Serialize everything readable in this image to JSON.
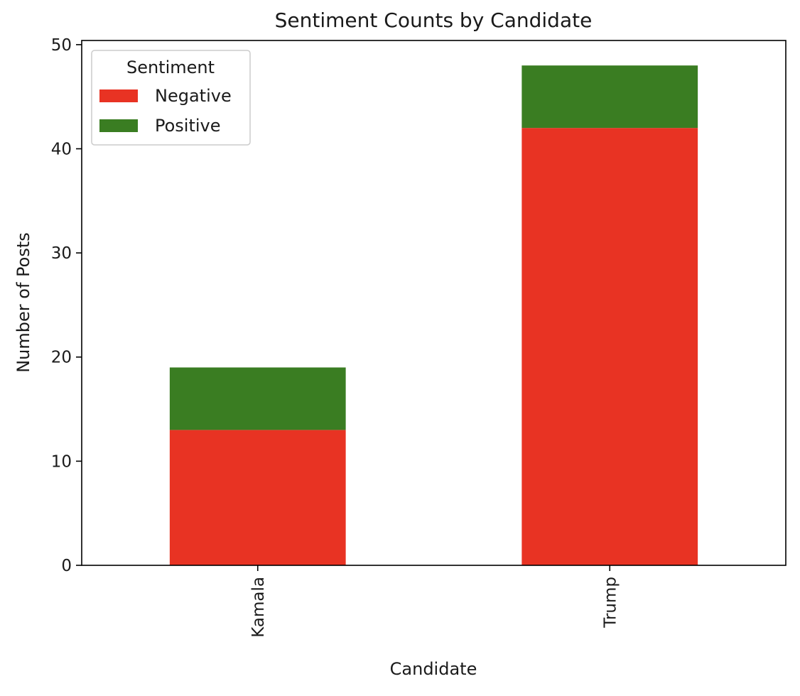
{
  "chart_data": {
    "type": "bar",
    "stacked": true,
    "title": "Sentiment Counts by Candidate",
    "xlabel": "Candidate",
    "ylabel": "Number of Posts",
    "categories": [
      "Kamala",
      "Trump"
    ],
    "series": [
      {
        "name": "Negative",
        "color": "#e83323",
        "values": [
          13,
          42
        ]
      },
      {
        "name": "Positive",
        "color": "#3a7d22",
        "values": [
          6,
          6
        ]
      }
    ],
    "ylim": [
      0,
      50.4
    ],
    "yticks": [
      0,
      10,
      20,
      30,
      40,
      50
    ],
    "legend": {
      "title": "Sentiment",
      "placement": "top-left"
    },
    "grid": false,
    "xtick_rotation": "vertical"
  }
}
